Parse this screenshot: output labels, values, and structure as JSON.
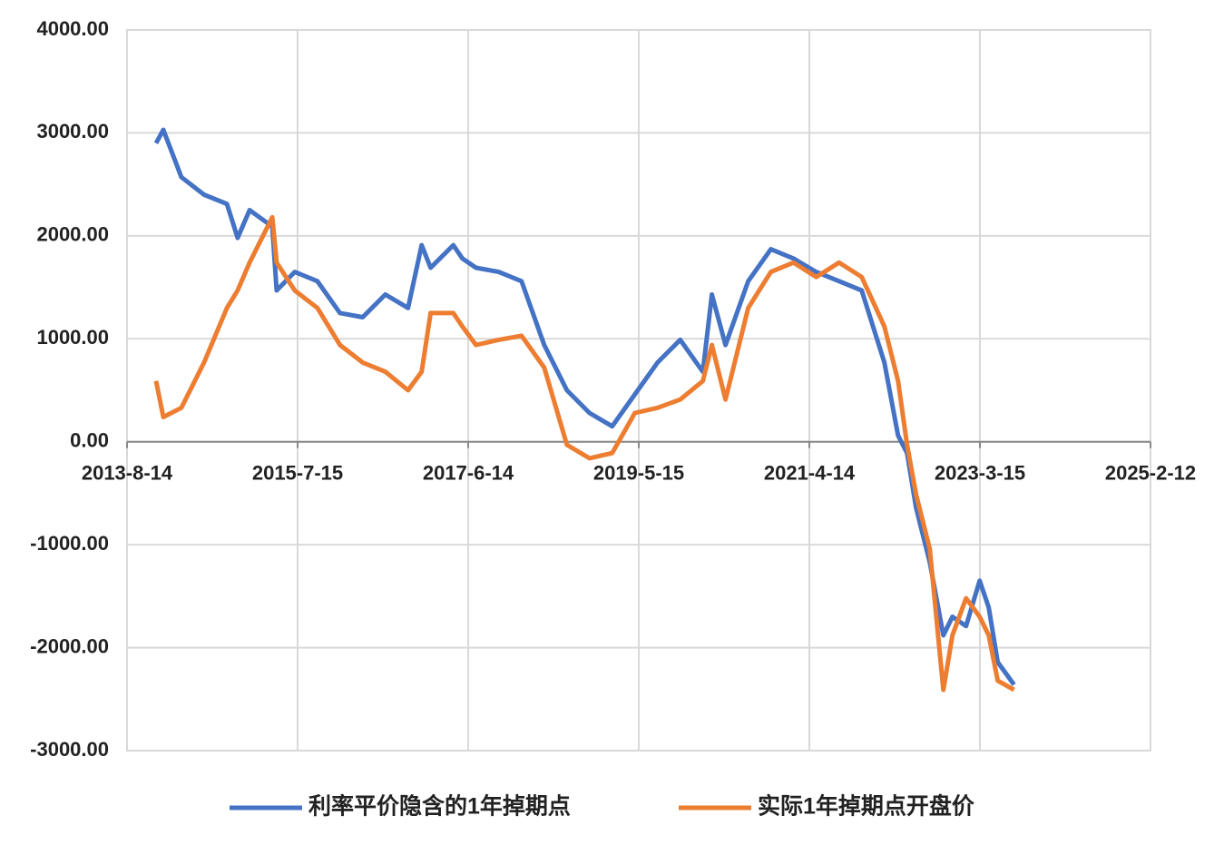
{
  "chart_data": {
    "type": "line",
    "x": [
      "2013-12-11",
      "2014-1-10",
      "2014-3-25",
      "2014-6-26",
      "2014-9-28",
      "2014-11-11",
      "2014-12-30",
      "2015-4-2",
      "2015-4-20",
      "2015-7-3",
      "2015-10-4",
      "2016-1-5",
      "2016-4-7",
      "2016-7-9",
      "2016-10-10",
      "2016-12-5",
      "2017-1-11",
      "2017-4-14",
      "2017-5-21",
      "2017-7-16",
      "2017-10-17",
      "2018-1-19",
      "2018-4-22",
      "2018-7-24",
      "2018-10-25",
      "2019-1-26",
      "2019-4-29",
      "2019-7-31",
      "2019-11-1",
      "2020-2-2",
      "2020-3-10",
      "2020-5-5",
      "2020-8-6",
      "2020-11-7",
      "2021-2-8",
      "2021-5-12",
      "2021-8-14",
      "2021-11-15",
      "2022-2-16",
      "2022-4-13",
      "2022-5-20",
      "2022-6-26",
      "2022-8-21",
      "2022-10-16",
      "2022-11-22",
      "2023-1-17",
      "2023-3-14",
      "2023-4-20",
      "2023-5-27",
      "2023-8-2"
    ],
    "series": [
      {
        "name": "利率平价隐含的1年掉期点",
        "color": "#4472c4",
        "values": [
          2900,
          3030,
          2570,
          2400,
          2310,
          1980,
          2250,
          2090,
          1470,
          1650,
          1560,
          1250,
          1210,
          1430,
          1300,
          1910,
          1690,
          1910,
          1780,
          1690,
          1650,
          1560,
          940,
          500,
          280,
          150,
          460,
          770,
          990,
          680,
          1430,
          940,
          1560,
          1870,
          1780,
          1650,
          1560,
          1470,
          770,
          60,
          -110,
          -640,
          -1170,
          -1880,
          -1700,
          -1790,
          -1350,
          -1610,
          -2140,
          -2360
        ]
      },
      {
        "name": "实际1年掉期点开盘价",
        "color": "#ed7d31",
        "values": [
          590,
          240,
          330,
          770,
          1300,
          1470,
          1740,
          2180,
          1740,
          1470,
          1300,
          940,
          770,
          680,
          500,
          680,
          1250,
          1250,
          1120,
          940,
          990,
          1030,
          720,
          -30,
          -160,
          -110,
          280,
          330,
          410,
          590,
          940,
          410,
          1300,
          1650,
          1740,
          1600,
          1740,
          1600,
          1120,
          590,
          -30,
          -510,
          -1040,
          -2410,
          -1880,
          -1520,
          -1700,
          -1880,
          -2320,
          -2410
        ]
      }
    ],
    "xlim": [
      "2013-8-14",
      "2025-2-12"
    ],
    "xticks": [
      "2013-8-14",
      "2015-7-15",
      "2017-6-14",
      "2019-5-15",
      "2021-4-14",
      "2023-3-15",
      "2025-2-12"
    ],
    "ylim": [
      -3000,
      4000
    ],
    "yticks": [
      {
        "value": -3000,
        "label": "-3000.00"
      },
      {
        "value": -2000,
        "label": "-2000.00"
      },
      {
        "value": -1000,
        "label": "-1000.00"
      },
      {
        "value": 0,
        "label": "0.00"
      },
      {
        "value": 1000,
        "label": "1000.00"
      },
      {
        "value": 2000,
        "label": "2000.00"
      },
      {
        "value": 3000,
        "label": "3000.00"
      },
      {
        "value": 4000,
        "label": "4000.00"
      }
    ],
    "grid": true,
    "legend": "bottom"
  }
}
